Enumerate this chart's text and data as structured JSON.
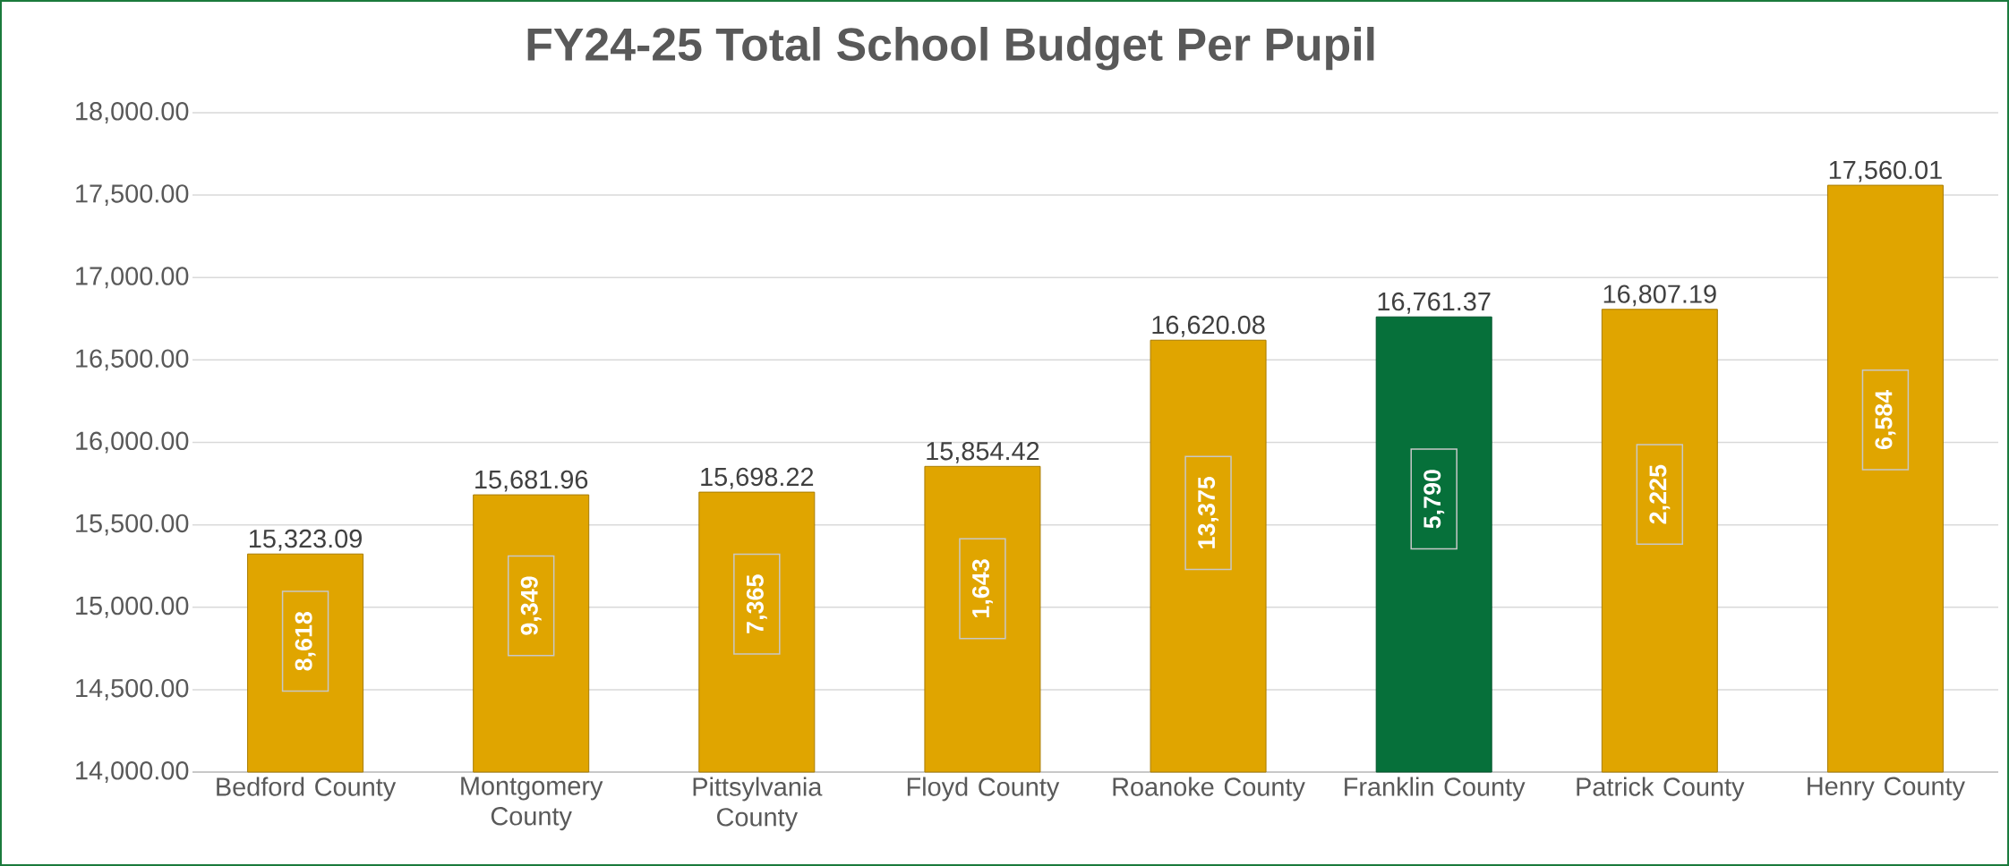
{
  "chart_data": {
    "type": "bar",
    "title": "FY24-25 Total School Budget Per Pupil",
    "categories": [
      "Bedford County",
      "Montgomery County",
      "Pittsylvania County",
      "Floyd County",
      "Roanoke County",
      "Franklin County",
      "Patrick County",
      "Henry County"
    ],
    "values": [
      15323.09,
      15681.96,
      15698.22,
      15854.42,
      16620.08,
      16761.37,
      16807.19,
      17560.01
    ],
    "value_labels": [
      "15,323.09",
      "15,681.96",
      "15,698.22",
      "15,854.42",
      "16,620.08",
      "16,761.37",
      "16,807.19",
      "17,560.01"
    ],
    "colors": [
      "#e0a500",
      "#e0a500",
      "#e0a500",
      "#e0a500",
      "#e0a500",
      "#06703a",
      "#e0a500",
      "#e0a500"
    ],
    "ylim": [
      14000,
      18000
    ],
    "yticks": [
      {
        "value": 14000,
        "label": "14,000.00"
      },
      {
        "value": 14500,
        "label": "14,500.00"
      },
      {
        "value": 15000,
        "label": "15,000.00"
      },
      {
        "value": 15500,
        "label": "15,500.00"
      },
      {
        "value": 16000,
        "label": "16,000.00"
      },
      {
        "value": 16500,
        "label": "16,500.00"
      },
      {
        "value": 17000,
        "label": "17,000.00"
      },
      {
        "value": 17500,
        "label": "17,500.00"
      },
      {
        "value": 18000,
        "label": "18,000.00"
      }
    ],
    "grid": "y",
    "annotations": [
      "8,618",
      "9,349",
      "7,365",
      "1,643",
      "13,375",
      "5,790",
      "2,225",
      "6,584"
    ]
  }
}
